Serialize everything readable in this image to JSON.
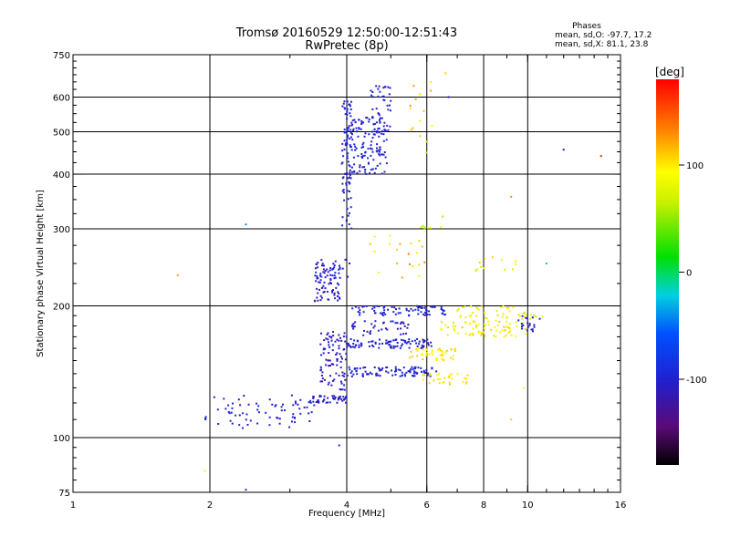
{
  "chart_data": {
    "type": "scatter",
    "title": "Tromsø 20160529 12:50:00-12:51:43",
    "subtitle": "RwPretec (8p)",
    "xlabel": "Frequency [MHz]",
    "ylabel": "Stationary phase Virtual Height [km]",
    "x_scale": "log",
    "y_scale": "log",
    "xlim": [
      1,
      16
    ],
    "ylim": [
      75,
      750
    ],
    "x_ticks": [
      1,
      2,
      4,
      6,
      8,
      10,
      16
    ],
    "y_ticks": [
      75,
      100,
      200,
      300,
      400,
      500,
      600,
      750
    ],
    "grid_x": [
      2,
      4,
      6,
      8,
      10
    ],
    "grid_y": [
      100,
      200,
      300,
      400,
      500,
      600
    ],
    "grid": true,
    "stats": {
      "heading": "Phases",
      "o_line": "mean, sd,O: -97.7, 17.2",
      "x_line": "mean, sd,X:  81.1, 23.8"
    },
    "colorbar": {
      "label": "[deg]",
      "ticks": [
        100,
        0,
        -100
      ],
      "range": [
        -180,
        180
      ],
      "colormap": "rainbow (black-purple-blue-cyan-green-yellow-orange-red)"
    },
    "clusters": [
      {
        "f0": 1.95,
        "f1": 3.4,
        "h0": 105,
        "h1": 125,
        "n": 70,
        "phase": -100,
        "spread": 12
      },
      {
        "f0": 3.3,
        "f1": 4.0,
        "h0": 120,
        "h1": 125,
        "n": 50,
        "phase": -105,
        "spread": 15
      },
      {
        "f0": 3.5,
        "f1": 4.0,
        "h0": 128,
        "h1": 175,
        "n": 90,
        "phase": -110,
        "spread": 18
      },
      {
        "f0": 3.4,
        "f1": 3.9,
        "h0": 205,
        "h1": 255,
        "n": 90,
        "phase": -105,
        "spread": 12
      },
      {
        "f0": 3.9,
        "f1": 4.1,
        "h0": 230,
        "h1": 600,
        "n": 80,
        "phase": -100,
        "spread": 10
      },
      {
        "f0": 4.0,
        "f1": 4.9,
        "h0": 400,
        "h1": 540,
        "n": 140,
        "phase": -100,
        "spread": 12
      },
      {
        "f0": 4.5,
        "f1": 5.0,
        "h0": 500,
        "h1": 640,
        "n": 45,
        "phase": -100,
        "spread": 10
      },
      {
        "f0": 4.0,
        "f1": 6.2,
        "h0": 160,
        "h1": 168,
        "n": 90,
        "phase": -100,
        "spread": 12
      },
      {
        "f0": 4.0,
        "f1": 6.3,
        "h0": 138,
        "h1": 145,
        "n": 90,
        "phase": -100,
        "spread": 12
      },
      {
        "f0": 4.1,
        "f1": 6.6,
        "h0": 190,
        "h1": 200,
        "n": 80,
        "phase": -100,
        "spread": 15
      },
      {
        "f0": 4.0,
        "f1": 5.5,
        "h0": 170,
        "h1": 185,
        "n": 40,
        "phase": -105,
        "spread": 20
      },
      {
        "f0": 5.5,
        "f1": 7.0,
        "h0": 150,
        "h1": 160,
        "n": 45,
        "phase": 100,
        "spread": 15
      },
      {
        "f0": 5.7,
        "f1": 7.4,
        "h0": 132,
        "h1": 140,
        "n": 30,
        "phase": 100,
        "spread": 15
      },
      {
        "f0": 6.4,
        "f1": 10.0,
        "h0": 170,
        "h1": 185,
        "n": 70,
        "phase": 95,
        "spread": 18
      },
      {
        "f0": 7.0,
        "f1": 10.8,
        "h0": 186,
        "h1": 200,
        "n": 45,
        "phase": 90,
        "spread": 18
      },
      {
        "f0": 9.5,
        "f1": 10.8,
        "h0": 175,
        "h1": 190,
        "n": 20,
        "phase": -100,
        "spread": 10
      },
      {
        "f0": 5.5,
        "f1": 6.2,
        "h0": 430,
        "h1": 650,
        "n": 15,
        "phase": 110,
        "spread": 20
      },
      {
        "f0": 5.8,
        "f1": 6.5,
        "h0": 300,
        "h1": 305,
        "n": 8,
        "phase": 60,
        "spread": 30
      },
      {
        "f0": 4.5,
        "f1": 6.0,
        "h0": 230,
        "h1": 300,
        "n": 20,
        "phase": 100,
        "spread": 40
      },
      {
        "f0": 7.5,
        "f1": 9.5,
        "h0": 240,
        "h1": 260,
        "n": 12,
        "phase": 80,
        "spread": 30
      }
    ],
    "isolated_points": [
      {
        "f": 1.7,
        "h": 235,
        "phase": 120
      },
      {
        "f": 2.4,
        "h": 307,
        "phase": -40
      },
      {
        "f": 2.4,
        "h": 76,
        "phase": -100
      },
      {
        "f": 1.95,
        "h": 84,
        "phase": 100
      },
      {
        "f": 3.85,
        "h": 96,
        "phase": -100
      },
      {
        "f": 6.7,
        "h": 600,
        "phase": -100
      },
      {
        "f": 6.6,
        "h": 680,
        "phase": 110
      },
      {
        "f": 6.5,
        "h": 320,
        "phase": 110
      },
      {
        "f": 12.0,
        "h": 455,
        "phase": -110
      },
      {
        "f": 14.5,
        "h": 440,
        "phase": 170
      },
      {
        "f": 11.0,
        "h": 250,
        "phase": 0
      },
      {
        "f": 9.2,
        "h": 355,
        "phase": 130
      },
      {
        "f": 9.2,
        "h": 110,
        "phase": 110
      },
      {
        "f": 9.8,
        "h": 130,
        "phase": 90
      }
    ]
  }
}
